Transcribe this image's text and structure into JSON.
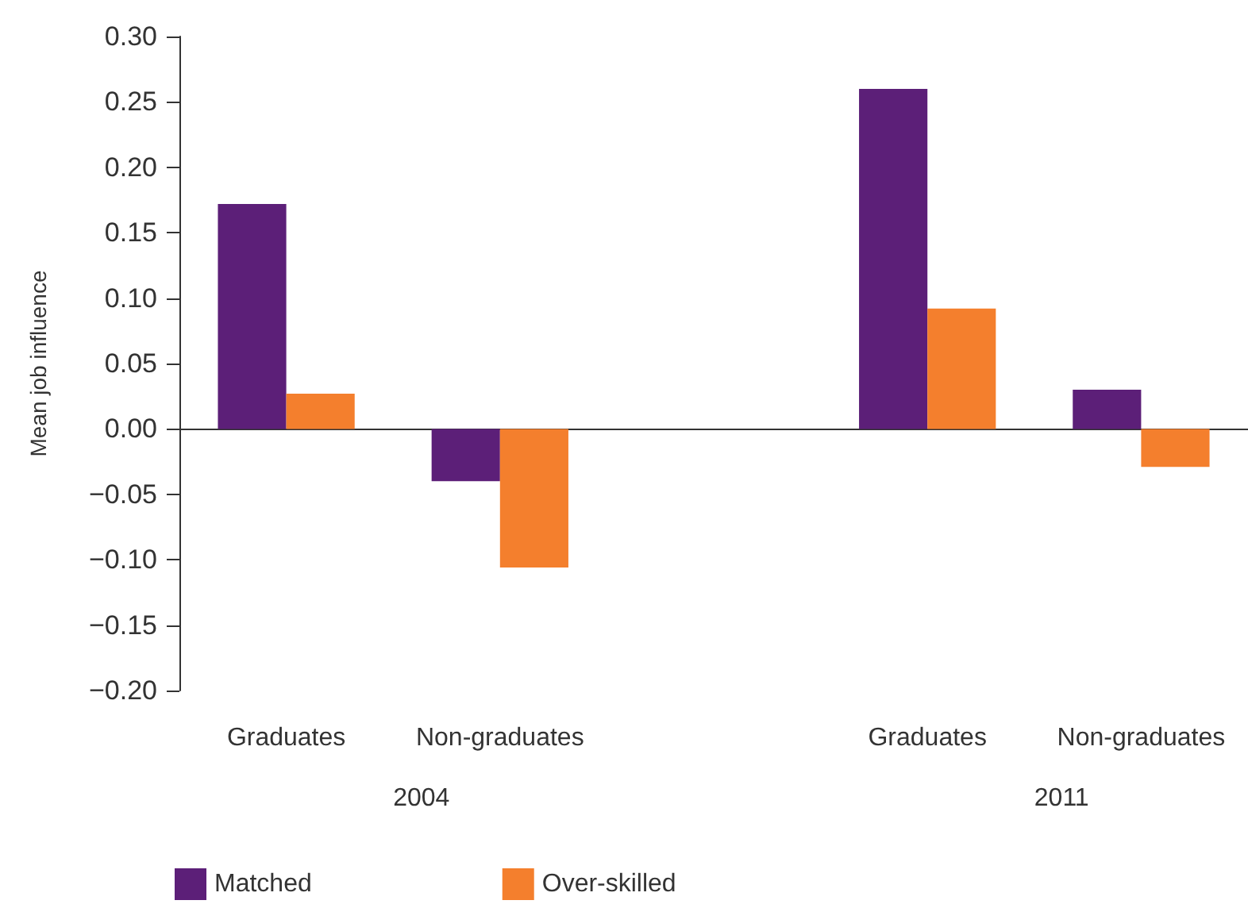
{
  "chart_data": {
    "type": "bar",
    "ylabel": "Mean job influence",
    "categories": [
      "Graduates",
      "Non-graduates",
      null,
      "Graduates",
      "Non-graduates"
    ],
    "series": [
      {
        "name": "Matched",
        "color": "#5c1f78",
        "values": [
          0.172,
          -0.04,
          null,
          0.26,
          0.03
        ]
      },
      {
        "name": "Over-skilled",
        "color": "#f47f2d",
        "values": [
          0.027,
          -0.106,
          null,
          0.092,
          -0.029
        ]
      }
    ],
    "ylim": [
      -0.2,
      0.3
    ],
    "yticks": [
      {
        "value": -0.2,
        "label": "−0.20"
      },
      {
        "value": -0.15,
        "label": "−0.15"
      },
      {
        "value": -0.1,
        "label": "−0.10"
      },
      {
        "value": -0.05,
        "label": "−0.05"
      },
      {
        "value": 0,
        "label": "0.00"
      },
      {
        "value": 0.05,
        "label": "0.05"
      },
      {
        "value": 0.1,
        "label": "0.10"
      },
      {
        "value": 0.15,
        "label": "0.15"
      },
      {
        "value": 0.2,
        "label": "0.20"
      },
      {
        "value": 0.25,
        "label": "0.25"
      },
      {
        "value": 0.3,
        "label": "0.30"
      }
    ],
    "annotations": [
      "2004",
      "2011"
    ],
    "legend": "bottom left"
  }
}
